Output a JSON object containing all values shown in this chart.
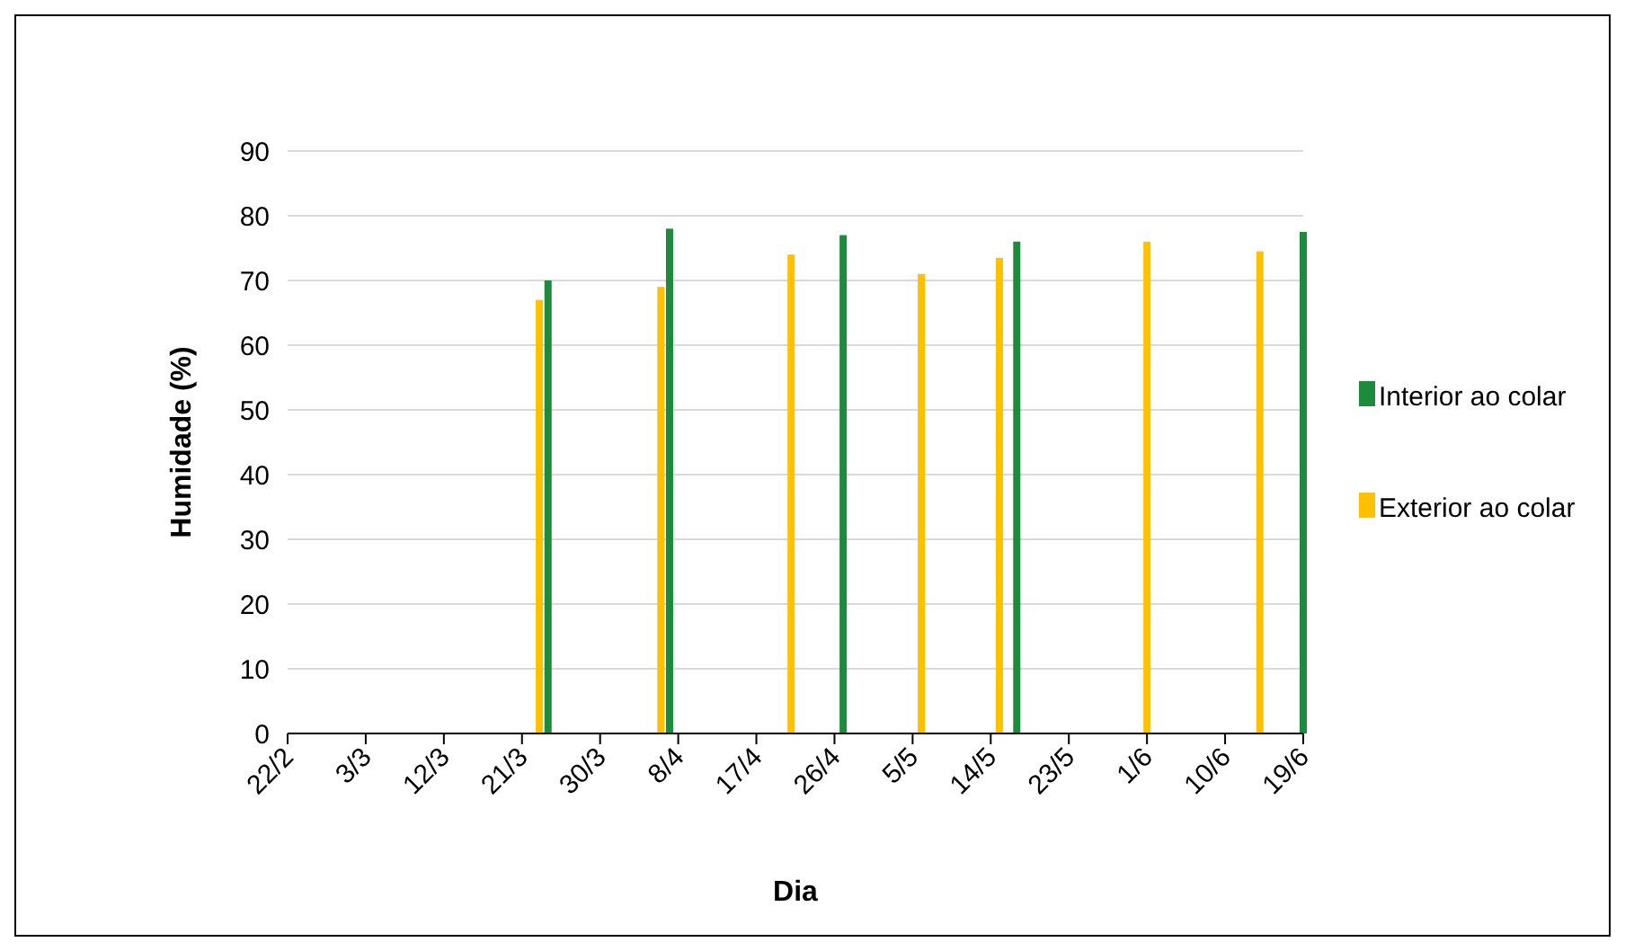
{
  "chart_data": {
    "type": "bar",
    "xlabel": "Dia",
    "ylabel": "Humidade (%)",
    "xlim": [
      "--02-22",
      "--06-19"
    ],
    "xticks": [
      {
        "value": "--02-22",
        "label": "22/2"
      },
      {
        "value": "--03-03",
        "label": "3/3"
      },
      {
        "value": "--03-12",
        "label": "12/3"
      },
      {
        "value": "--03-21",
        "label": "21/3"
      },
      {
        "value": "--03-30",
        "label": "30/3"
      },
      {
        "value": "--04-08",
        "label": "8/4"
      },
      {
        "value": "--04-17",
        "label": "17/4"
      },
      {
        "value": "--04-26",
        "label": "26/4"
      },
      {
        "value": "--05-05",
        "label": "5/5"
      },
      {
        "value": "--05-14",
        "label": "14/5"
      },
      {
        "value": "--05-23",
        "label": "23/5"
      },
      {
        "value": "--06-01",
        "label": "1/6"
      },
      {
        "value": "--06-10",
        "label": "10/6"
      },
      {
        "value": "--06-19",
        "label": "19/6"
      }
    ],
    "ylim": [
      0,
      90
    ],
    "yticks": [
      0,
      10,
      20,
      30,
      40,
      50,
      60,
      70,
      80,
      90
    ],
    "grid": "y",
    "legend": "right",
    "series": [
      {
        "name": "Interior ao colar",
        "color": "#1e8a3e",
        "x": [
          "--03-24",
          "--04-07",
          "--04-27",
          "--05-17",
          "--06-19"
        ],
        "values": [
          70,
          78,
          77,
          76,
          77.5
        ]
      },
      {
        "name": "Exterior ao colar",
        "color": "#ffc000",
        "x": [
          "--03-23",
          "--04-06",
          "--04-21",
          "--05-06",
          "--05-15",
          "--06-01",
          "--06-14"
        ],
        "values": [
          67,
          69,
          74,
          71,
          73.5,
          76,
          74.5
        ]
      }
    ]
  }
}
